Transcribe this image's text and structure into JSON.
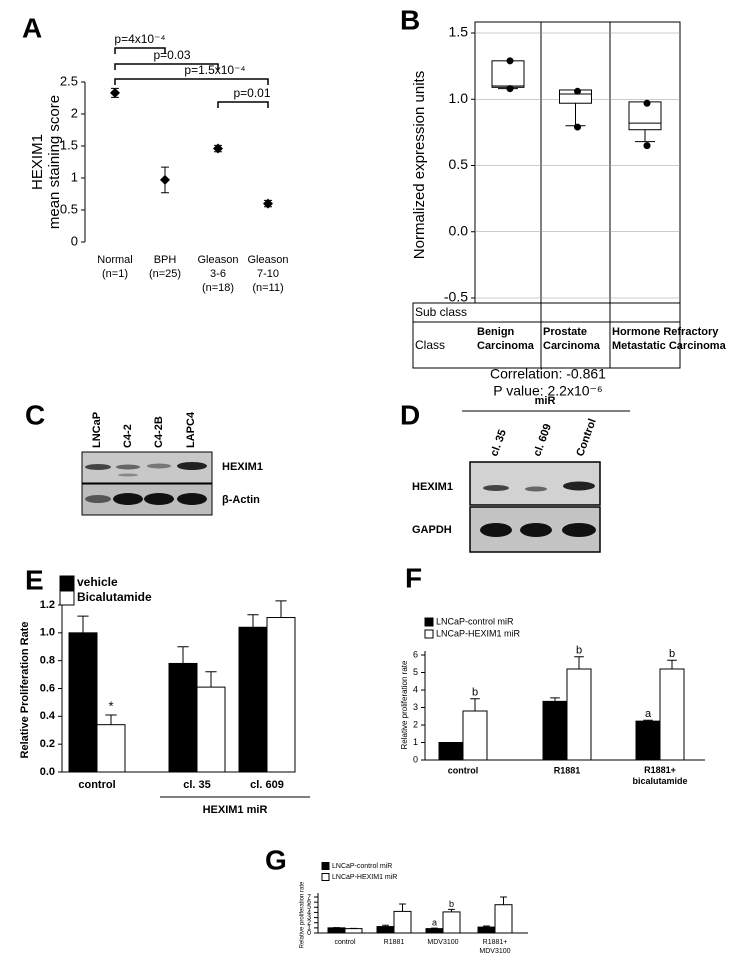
{
  "chart_data": [
    {
      "panel": "A",
      "type": "errorbar",
      "ylabel": [
        "HEXIM1",
        "mean staining score"
      ],
      "categories": [
        [
          "Normal",
          "(n=1)"
        ],
        [
          "BPH",
          "(n=25)"
        ],
        [
          "Gleason",
          "3-6",
          "(n=18)"
        ],
        [
          "Gleason",
          "7-10",
          "(n=11)"
        ]
      ],
      "values": [
        2.33,
        0.97,
        1.46,
        0.6
      ],
      "errors": [
        0.07,
        0.2,
        0.05,
        0.05
      ],
      "color": "#000000",
      "ylim": [
        0,
        2.5
      ],
      "yticks": [
        0,
        0.5,
        1,
        1.5,
        2,
        2.5
      ],
      "annotations": [
        "p=4x10⁻⁴",
        "p=0.03",
        "p=1.5x10⁻⁴",
        "p=0.01"
      ]
    },
    {
      "panel": "B",
      "type": "box",
      "ylabel": "Normalized expression units",
      "categories": [
        [
          "Benign",
          "Carcinoma"
        ],
        [
          "Prostate",
          "Carcinoma"
        ],
        [
          "Hormone Refractory",
          "Metastatic Carcinoma"
        ]
      ],
      "boxes": [
        {
          "min": 1.08,
          "q1": 1.09,
          "median": 1.1,
          "q3": 1.29
        },
        {
          "min": 0.8,
          "q1": 0.97,
          "median": 1.04,
          "q3": 1.07
        },
        {
          "min": 0.68,
          "q1": 0.77,
          "median": 0.82,
          "q3": 0.98
        }
      ],
      "points": [
        [
          1.29,
          1.08
        ],
        [
          1.06,
          0.79
        ],
        [
          0.97,
          0.65
        ]
      ],
      "ylim": [
        -0.5,
        1.5
      ],
      "yticks": [
        1.5,
        {
          "value": 1,
          "label": "1.0"
        },
        0.5,
        {
          "value": 0,
          "label": "0.0"
        },
        -0.5
      ],
      "grid": true,
      "rows": [
        "Sub class",
        "Class"
      ],
      "annotations": [
        "Correlation: -0.861",
        "P value: 2.2x10⁻⁶"
      ]
    },
    {
      "panel": "E",
      "type": "bar",
      "ylabel": "Relative Proliferation Rate",
      "categories": [
        "control",
        "cl. 35",
        "cl. 609"
      ],
      "series": [
        {
          "name": "vehicle",
          "color": "#000000",
          "values": [
            1.0,
            0.78,
            1.04
          ],
          "errors": [
            0.12,
            0.12,
            0.09
          ]
        },
        {
          "name": "Bicalutamide",
          "color": "#ffffff",
          "values": [
            0.34,
            0.61,
            1.11
          ],
          "errors": [
            0.07,
            0.11,
            0.12
          ],
          "labels": [
            "*",
            null,
            null
          ]
        }
      ],
      "ylim": [
        0,
        1.2
      ],
      "yticks": [
        {
          "value": 0,
          "label": "0.0"
        },
        0.2,
        0.4,
        0.6,
        0.8,
        {
          "value": 1,
          "label": "1.0"
        },
        1.2
      ],
      "group_label": "HEXIM1 miR"
    },
    {
      "panel": "F",
      "type": "bar",
      "ylabel": "Relative proliferation rate",
      "categories": [
        "control",
        "R1881",
        [
          "R1881+",
          "bicalutamide"
        ]
      ],
      "series": [
        {
          "name": "LNCaP-control miR",
          "color": "#000000",
          "values": [
            1.0,
            3.35,
            2.22
          ],
          "errors": [
            0,
            0.2,
            0.05
          ],
          "labels": [
            null,
            null,
            "a"
          ]
        },
        {
          "name": "LNCaP-HEXIM1 miR",
          "color": "#ffffff",
          "values": [
            2.8,
            5.2,
            5.2
          ],
          "errors": [
            0.7,
            0.7,
            0.5
          ],
          "labels": [
            "b",
            "b",
            "b"
          ]
        }
      ],
      "ylim": [
        0,
        6
      ],
      "yticks": [
        0,
        1,
        2,
        3,
        4,
        5,
        6
      ]
    },
    {
      "panel": "G",
      "type": "bar",
      "ylabel": "Relative proliferation rate",
      "categories": [
        "control",
        "R1881",
        "MDV3100",
        [
          "R1881+",
          "MDV3100"
        ]
      ],
      "series": [
        {
          "name": "LNCaP-control miR",
          "color": "#000000",
          "values": [
            1.0,
            1.25,
            0.85,
            1.15
          ],
          "errors": [
            0.05,
            0.25,
            0.1,
            0.2
          ],
          "labels": [
            null,
            null,
            "a",
            null
          ]
        },
        {
          "name": "LNCaP-HEXIM1 miR",
          "color": "#ffffff",
          "values": [
            0.85,
            4.2,
            4.1,
            5.5
          ],
          "errors": [
            0.05,
            1.45,
            0.5,
            1.5
          ],
          "labels": [
            null,
            null,
            "b",
            null
          ]
        }
      ],
      "ylim": [
        0,
        7
      ],
      "yticks": [
        0,
        1,
        2,
        3,
        4,
        5,
        6,
        7
      ]
    }
  ],
  "blots": [
    {
      "panel": "C",
      "lanes": [
        "LNCaP",
        "C4-2",
        "C4-2B",
        "LAPC4"
      ],
      "rows": [
        "HEXIM1",
        "β-Actin"
      ]
    },
    {
      "panel": "D",
      "header": "miR",
      "lanes": [
        "cl. 35",
        "cl. 609",
        "Control"
      ],
      "rows": [
        "HEXIM1",
        "GAPDH"
      ]
    }
  ]
}
